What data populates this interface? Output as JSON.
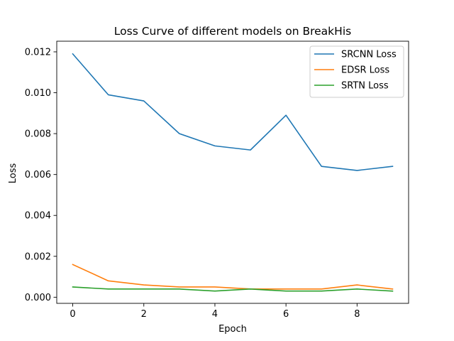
{
  "chart_data": {
    "type": "line",
    "title": "Loss Curve of different models on BreakHis",
    "xlabel": "Epoch",
    "ylabel": "Loss",
    "x": [
      0,
      1,
      2,
      3,
      4,
      5,
      6,
      7,
      8,
      9
    ],
    "xlim": [
      -0.45,
      9.45
    ],
    "ylim": [
      -0.0003,
      0.01252
    ],
    "xticks": [
      0,
      2,
      4,
      6,
      8
    ],
    "yticks": [
      0.0,
      0.002,
      0.004,
      0.006,
      0.008,
      0.01,
      0.012
    ],
    "xtick_labels": [
      "0",
      "2",
      "4",
      "6",
      "8"
    ],
    "ytick_labels": [
      "0.000",
      "0.002",
      "0.004",
      "0.006",
      "0.008",
      "0.010",
      "0.012"
    ],
    "grid": false,
    "legend_position": "top-right",
    "series": [
      {
        "name": "SRCNN Loss",
        "color": "#1f77b4",
        "values": [
          0.0119,
          0.0099,
          0.0096,
          0.008,
          0.0074,
          0.0072,
          0.0089,
          0.0064,
          0.0062,
          0.0064
        ]
      },
      {
        "name": "EDSR Loss",
        "color": "#ff7f0e",
        "values": [
          0.0016,
          0.0008,
          0.0006,
          0.0005,
          0.0005,
          0.0004,
          0.0004,
          0.0004,
          0.0006,
          0.0004
        ]
      },
      {
        "name": "SRTN Loss",
        "color": "#2ca02c",
        "values": [
          0.0005,
          0.0004,
          0.0004,
          0.0004,
          0.0003,
          0.0004,
          0.0003,
          0.0003,
          0.0004,
          0.0003
        ]
      }
    ]
  }
}
